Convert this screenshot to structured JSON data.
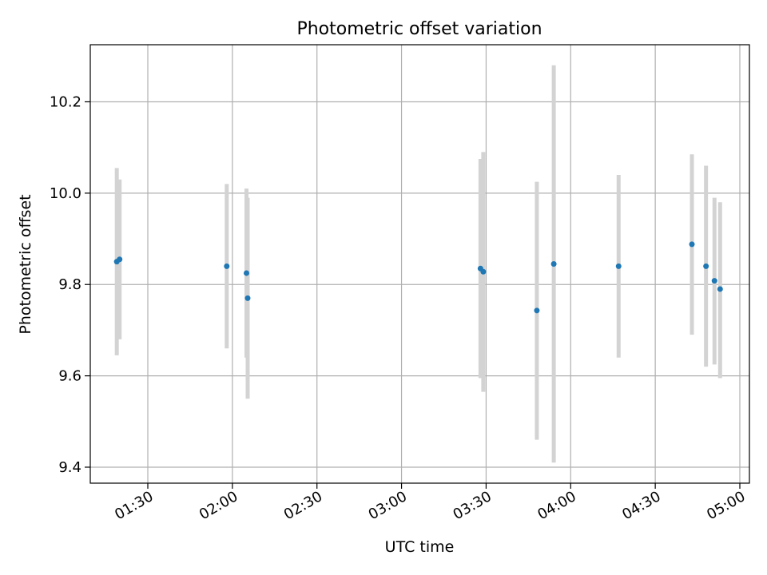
{
  "chart_data": {
    "type": "scatter",
    "title": "Photometric offset variation",
    "xlabel": "UTC time",
    "ylabel": "Photometric offset",
    "x_ticks": [
      "01:30",
      "02:00",
      "02:30",
      "03:00",
      "03:30",
      "04:00",
      "04:30",
      "05:00"
    ],
    "y_ticks": [
      "9.4",
      "9.6",
      "9.8",
      "10.0",
      "10.2"
    ],
    "xlim": [
      "01:10",
      "05:00"
    ],
    "ylim": [
      9.365,
      10.325
    ],
    "grid": true,
    "colors": {
      "points": "#1f77b4",
      "error_bars": "#d3d3d3",
      "grid": "#b0b0b0"
    },
    "points": [
      {
        "time": "01:19",
        "offset": 9.85,
        "err_low": 9.645,
        "err_high": 10.055
      },
      {
        "time": "01:20",
        "offset": 9.855,
        "err_low": 9.68,
        "err_high": 10.03
      },
      {
        "time": "01:58",
        "offset": 9.84,
        "err_low": 9.66,
        "err_high": 10.02
      },
      {
        "time": "02:05",
        "offset": 9.825,
        "err_low": 9.64,
        "err_high": 10.01
      },
      {
        "time": "02:05",
        "offset": 9.77,
        "err_low": 9.55,
        "err_high": 9.99
      },
      {
        "time": "03:28",
        "offset": 9.835,
        "err_low": 9.595,
        "err_high": 10.075
      },
      {
        "time": "03:29",
        "offset": 9.828,
        "err_low": 9.565,
        "err_high": 10.09
      },
      {
        "time": "03:48",
        "offset": 9.743,
        "err_low": 9.46,
        "err_high": 10.025
      },
      {
        "time": "03:54",
        "offset": 9.845,
        "err_low": 9.41,
        "err_high": 10.28
      },
      {
        "time": "04:17",
        "offset": 9.84,
        "err_low": 9.64,
        "err_high": 10.04
      },
      {
        "time": "04:43",
        "offset": 9.888,
        "err_low": 9.69,
        "err_high": 10.085
      },
      {
        "time": "04:48",
        "offset": 9.84,
        "err_low": 9.62,
        "err_high": 10.06
      },
      {
        "time": "04:51",
        "offset": 9.808,
        "err_low": 9.625,
        "err_high": 9.99
      },
      {
        "time": "04:53",
        "offset": 9.79,
        "err_low": 9.595,
        "err_high": 9.98
      }
    ]
  }
}
